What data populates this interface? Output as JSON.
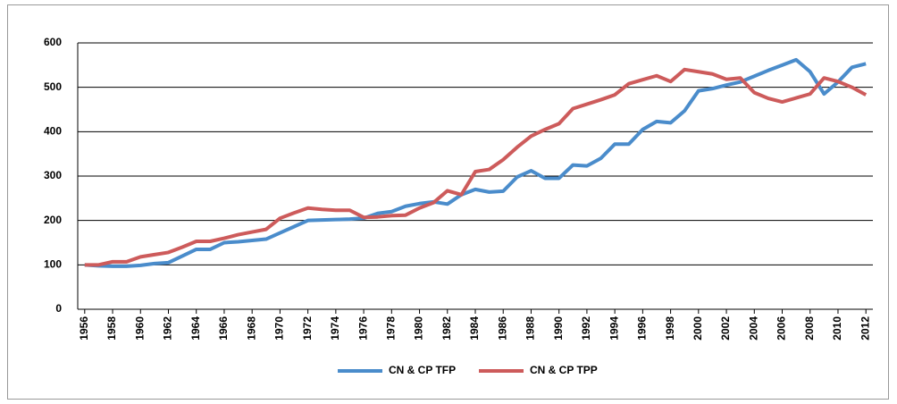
{
  "chart_data": {
    "type": "line",
    "x": [
      1956,
      1957,
      1958,
      1959,
      1960,
      1961,
      1962,
      1963,
      1964,
      1965,
      1966,
      1967,
      1968,
      1969,
      1970,
      1971,
      1972,
      1973,
      1974,
      1975,
      1976,
      1977,
      1978,
      1979,
      1980,
      1981,
      1982,
      1983,
      1984,
      1985,
      1986,
      1987,
      1988,
      1989,
      1990,
      1991,
      1992,
      1993,
      1994,
      1995,
      1996,
      1997,
      1998,
      1999,
      2000,
      2001,
      2002,
      2003,
      2004,
      2005,
      2006,
      2007,
      2008,
      2009,
      2010,
      2011,
      2012
    ],
    "series": [
      {
        "name": "CN & CP TFP",
        "color": "#4a8ccb",
        "values": [
          100,
          98,
          97,
          97,
          99,
          103,
          105,
          120,
          135,
          135,
          150,
          152,
          155,
          158,
          172,
          186,
          200,
          201,
          202,
          203,
          205,
          216,
          220,
          232,
          238,
          242,
          237,
          258,
          270,
          264,
          266,
          298,
          312,
          295,
          295,
          325,
          323,
          340,
          372,
          372,
          405,
          423,
          420,
          447,
          492,
          497,
          505,
          512,
          525,
          538,
          550,
          562,
          535,
          485,
          512,
          545,
          553
        ]
      },
      {
        "name": "CN & CP TPP",
        "color": "#cd5b5b",
        "values": [
          100,
          100,
          107,
          107,
          118,
          123,
          128,
          140,
          153,
          153,
          160,
          168,
          174,
          180,
          205,
          217,
          228,
          225,
          223,
          223,
          207,
          208,
          211,
          212,
          228,
          240,
          267,
          258,
          310,
          315,
          337,
          365,
          390,
          405,
          418,
          452,
          462,
          472,
          483,
          508,
          517,
          526,
          513,
          540,
          535,
          530,
          518,
          521,
          488,
          475,
          467,
          476,
          485,
          521,
          513,
          500,
          483
        ]
      }
    ],
    "xlim": [
      1955.5,
      2012.5
    ],
    "xticks": [
      1956,
      1958,
      1960,
      1962,
      1964,
      1966,
      1968,
      1970,
      1972,
      1974,
      1976,
      1978,
      1980,
      1982,
      1984,
      1986,
      1988,
      1990,
      1992,
      1994,
      1996,
      1998,
      2000,
      2002,
      2004,
      2006,
      2008,
      2010,
      2012
    ],
    "ylim": [
      0,
      600
    ],
    "yticks": [
      0,
      100,
      200,
      300,
      400,
      500,
      600
    ],
    "grid": true,
    "legend": "bottom"
  }
}
